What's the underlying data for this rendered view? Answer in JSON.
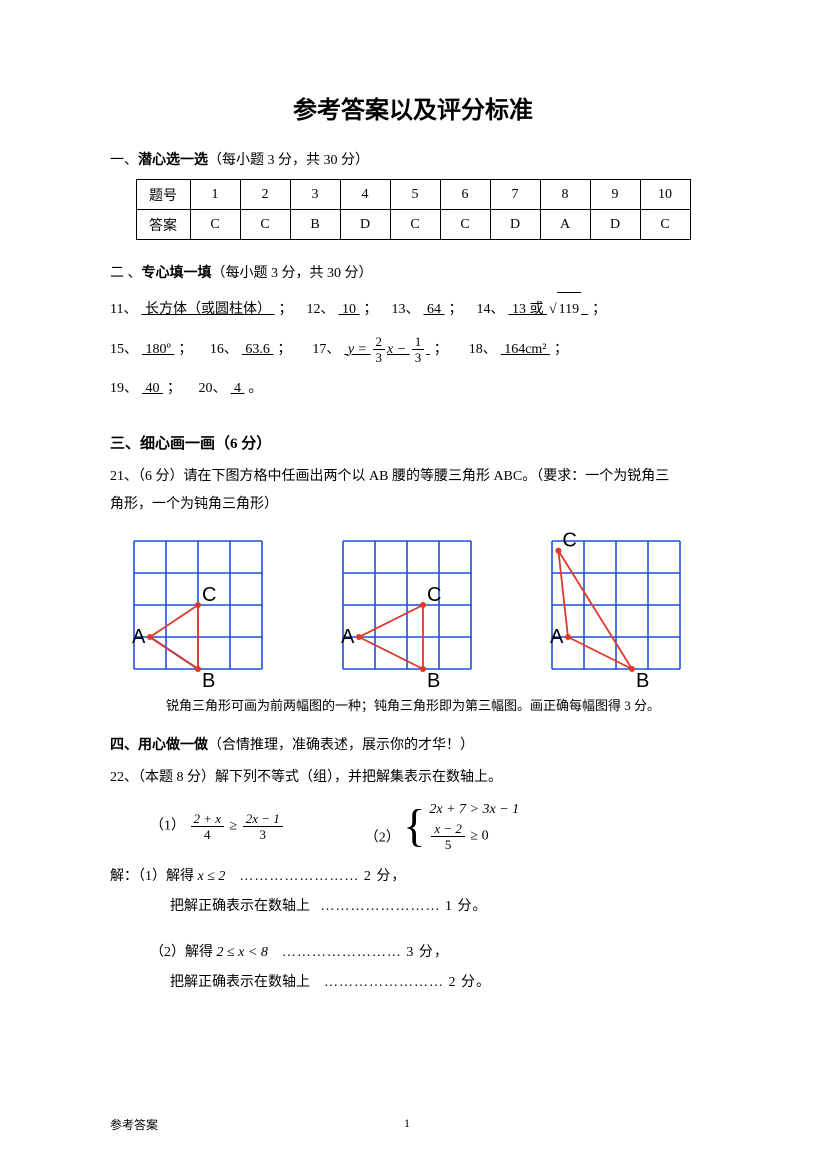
{
  "title": "参考答案以及评分标准",
  "section1": {
    "heading_prefix": "一、",
    "heading_bold": "潜心选一选",
    "heading_suffix": "（每小题 3 分，共 30 分）",
    "table": {
      "row_head1": "题号",
      "row_head2": "答案",
      "nums": [
        "1",
        "2",
        "3",
        "4",
        "5",
        "6",
        "7",
        "8",
        "9",
        "10"
      ],
      "answers": [
        "C",
        "C",
        "B",
        "D",
        "C",
        "C",
        "D",
        "A",
        "D",
        "C"
      ]
    }
  },
  "section2": {
    "heading_prefix": "二 、",
    "heading_bold": "专心填一填",
    "heading_suffix": "（每小题 3 分，共 30 分）",
    "q11": {
      "n": "11、",
      "ans": "  长方体（或圆柱体）  ",
      "sep": "；"
    },
    "q12": {
      "n": "12、",
      "ans": "  10  ",
      "sep": "；"
    },
    "q13": {
      "n": "13、",
      "ans": "  64  ",
      "sep": "；"
    },
    "q14": {
      "n": "14、",
      "ans_a": "  13  或  ",
      "rad": "119",
      "sep": "；"
    },
    "q15": {
      "n": "15、",
      "ans": "  180º  ",
      "sep": "；"
    },
    "q16": {
      "n": "16、",
      "ans": "  63.6  ",
      "sep": "；"
    },
    "q17": {
      "n": "17、",
      "prefix_u": "y =",
      "num1": "2",
      "den1": "3",
      "mid": "x −",
      "num2": "1",
      "den2": "3",
      "sep": "；"
    },
    "q18": {
      "n": "18、",
      "ans": "  164cm²  ",
      "sep": "；"
    },
    "q19": {
      "n": "19、",
      "ans": "  40  ",
      "sep": "；"
    },
    "q20": {
      "n": "20、",
      "ans": "  4  ",
      "sep": "。"
    }
  },
  "section3": {
    "heading": "三、细心画一画（6 分）",
    "q21_line1": "21、（6 分）请在下图方格中任画出两个以 AB 腰的等腰三角形 ABC。（要求：一个为锐角三",
    "q21_line2": "角形，一个为钝角三角形）",
    "caption": "锐角三角形可画为前两幅图的一种；钝角三角形即为第三幅图。画正确每幅图得 3 分。",
    "grid": {
      "grid_color": "#1f4fd6",
      "triangle_color": "#e0392b",
      "blue_line_color": "#1f4fd6",
      "text_color": "#000000",
      "cell": 32,
      "rows": 4,
      "cols": 4,
      "fig1": {
        "A": [
          0.5,
          3
        ],
        "B": [
          2,
          4
        ],
        "C": [
          2,
          2
        ],
        "extraLine": [
          [
            0.5,
            3
          ],
          [
            2,
            4
          ]
        ],
        "label_A": "A",
        "label_B": "B",
        "label_C": "C"
      },
      "fig2": {
        "A": [
          0.5,
          3
        ],
        "B": [
          2.5,
          4
        ],
        "C": [
          2.5,
          2
        ],
        "label_A": "A",
        "label_B": "B",
        "label_C": "C"
      },
      "fig3": {
        "A": [
          0.5,
          3
        ],
        "B": [
          2.5,
          4
        ],
        "C": [
          0.2,
          0.3
        ],
        "label_A": "A",
        "label_B": "B",
        "label_C": "C"
      }
    }
  },
  "section4": {
    "heading_prefix": "四、",
    "heading_bold": "用心做一做",
    "heading_suffix": "（合情推理，准确表述，展示你的才华！）",
    "q22_intro": "22、（本题 8 分）解下列不等式（组），并把解集表示在数轴上。",
    "eq1": {
      "label": "（1）",
      "lhs_num": "2 + x",
      "lhs_den": "4",
      "op": "≥",
      "rhs_num": "2x − 1",
      "rhs_den": "3"
    },
    "eq2": {
      "label": "（2）",
      "line1": "2x + 7 > 3x − 1",
      "line2_num": "x − 2",
      "line2_den": "5",
      "line2_tail": "≥ 0"
    },
    "sol": {
      "l1_a": "解：（1）解得",
      "l1_expr": "x ≤ 2",
      "l1_dots": "…………………… 2 分，",
      "l2_a": "把解正确表示在数轴上",
      "l2_dots": "…………………… 1 分。",
      "l3_a": "（2）解得",
      "l3_expr": "2 ≤ x < 8",
      "l3_dots": "……………………   3 分，",
      "l4_a": "把解正确表示在数轴上",
      "l4_dots": "……………………   2 分。"
    }
  },
  "footer": {
    "left": "参考答案",
    "page": "1"
  }
}
